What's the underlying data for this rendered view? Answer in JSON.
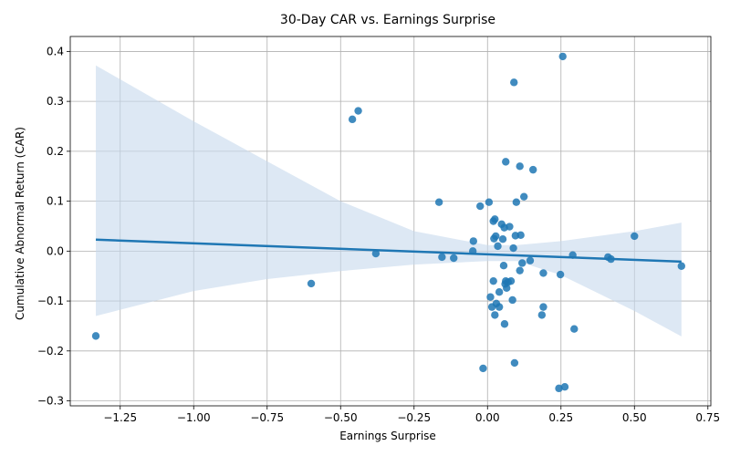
{
  "chart_data": {
    "type": "scatter",
    "title": "30-Day CAR vs. Earnings Surprise",
    "xlabel": "Earnings Surprise",
    "ylabel": "Cumulative Abnormal Return (CAR)",
    "xlim": [
      -1.42,
      0.76
    ],
    "ylim": [
      -0.31,
      0.43
    ],
    "x_ticks": [
      -1.25,
      -1.0,
      -0.75,
      -0.5,
      -0.25,
      0.0,
      0.25,
      0.5,
      0.75
    ],
    "x_tick_labels": [
      "−1.25",
      "−1.00",
      "−0.75",
      "−0.50",
      "−0.25",
      "0.00",
      "0.25",
      "0.50",
      "0.75"
    ],
    "y_ticks": [
      -0.3,
      -0.2,
      -0.1,
      0.0,
      0.1,
      0.2,
      0.3,
      0.4
    ],
    "y_tick_labels": [
      "−0.3",
      "−0.2",
      "−0.1",
      "0.0",
      "0.1",
      "0.2",
      "0.3",
      "0.4"
    ],
    "grid": true,
    "point_color": "#1f77b4",
    "band_color": "#c6d9ec",
    "regression": {
      "x": [
        -1.333,
        0.66
      ],
      "y": [
        0.023,
        -0.021
      ]
    },
    "confidence_band": {
      "x": [
        -1.333,
        -1.0,
        -0.75,
        -0.5,
        -0.25,
        0.0,
        0.1,
        0.25,
        0.5,
        0.66
      ],
      "upper": [
        0.372,
        0.26,
        0.18,
        0.1,
        0.04,
        0.012,
        0.012,
        0.02,
        0.04,
        0.057
      ],
      "lower": [
        -0.13,
        -0.08,
        -0.056,
        -0.04,
        -0.027,
        -0.02,
        -0.02,
        -0.048,
        -0.12,
        -0.171
      ]
    },
    "points": [
      {
        "x": -1.333,
        "y": -0.17
      },
      {
        "x": -0.6,
        "y": -0.065
      },
      {
        "x": -0.46,
        "y": 0.264
      },
      {
        "x": -0.44,
        "y": 0.281
      },
      {
        "x": -0.38,
        "y": -0.005
      },
      {
        "x": -0.165,
        "y": 0.098
      },
      {
        "x": -0.155,
        "y": -0.012
      },
      {
        "x": -0.115,
        "y": -0.014
      },
      {
        "x": -0.05,
        "y": 0.0
      },
      {
        "x": -0.048,
        "y": 0.02
      },
      {
        "x": -0.025,
        "y": 0.09
      },
      {
        "x": -0.015,
        "y": -0.235
      },
      {
        "x": 0.005,
        "y": 0.098
      },
      {
        "x": 0.01,
        "y": -0.092
      },
      {
        "x": 0.015,
        "y": -0.112
      },
      {
        "x": 0.02,
        "y": -0.06
      },
      {
        "x": 0.02,
        "y": 0.06
      },
      {
        "x": 0.022,
        "y": 0.025
      },
      {
        "x": 0.025,
        "y": 0.064
      },
      {
        "x": 0.025,
        "y": -0.128
      },
      {
        "x": 0.028,
        "y": 0.03
      },
      {
        "x": 0.03,
        "y": -0.105
      },
      {
        "x": 0.035,
        "y": 0.01
      },
      {
        "x": 0.04,
        "y": -0.082
      },
      {
        "x": 0.04,
        "y": -0.112
      },
      {
        "x": 0.048,
        "y": 0.054
      },
      {
        "x": 0.052,
        "y": 0.024
      },
      {
        "x": 0.055,
        "y": -0.029
      },
      {
        "x": 0.057,
        "y": 0.047
      },
      {
        "x": 0.058,
        "y": -0.146
      },
      {
        "x": 0.06,
        "y": -0.066
      },
      {
        "x": 0.062,
        "y": -0.06
      },
      {
        "x": 0.062,
        "y": 0.179
      },
      {
        "x": 0.065,
        "y": -0.074
      },
      {
        "x": 0.07,
        "y": -0.062
      },
      {
        "x": 0.075,
        "y": 0.049
      },
      {
        "x": 0.08,
        "y": -0.06
      },
      {
        "x": 0.085,
        "y": -0.098
      },
      {
        "x": 0.088,
        "y": 0.006
      },
      {
        "x": 0.09,
        "y": 0.338
      },
      {
        "x": 0.092,
        "y": -0.224
      },
      {
        "x": 0.095,
        "y": 0.031
      },
      {
        "x": 0.098,
        "y": 0.098
      },
      {
        "x": 0.11,
        "y": 0.17
      },
      {
        "x": 0.11,
        "y": -0.039
      },
      {
        "x": 0.113,
        "y": 0.032
      },
      {
        "x": 0.118,
        "y": -0.024
      },
      {
        "x": 0.124,
        "y": 0.109
      },
      {
        "x": 0.145,
        "y": -0.019
      },
      {
        "x": 0.155,
        "y": 0.163
      },
      {
        "x": 0.185,
        "y": -0.128
      },
      {
        "x": 0.19,
        "y": -0.044
      },
      {
        "x": 0.19,
        "y": -0.112
      },
      {
        "x": 0.243,
        "y": -0.275
      },
      {
        "x": 0.248,
        "y": -0.047
      },
      {
        "x": 0.256,
        "y": 0.39
      },
      {
        "x": 0.263,
        "y": -0.272
      },
      {
        "x": 0.29,
        "y": -0.008
      },
      {
        "x": 0.295,
        "y": -0.156
      },
      {
        "x": 0.41,
        "y": -0.012
      },
      {
        "x": 0.42,
        "y": -0.016
      },
      {
        "x": 0.5,
        "y": 0.03
      },
      {
        "x": 0.66,
        "y": -0.03
      }
    ]
  }
}
